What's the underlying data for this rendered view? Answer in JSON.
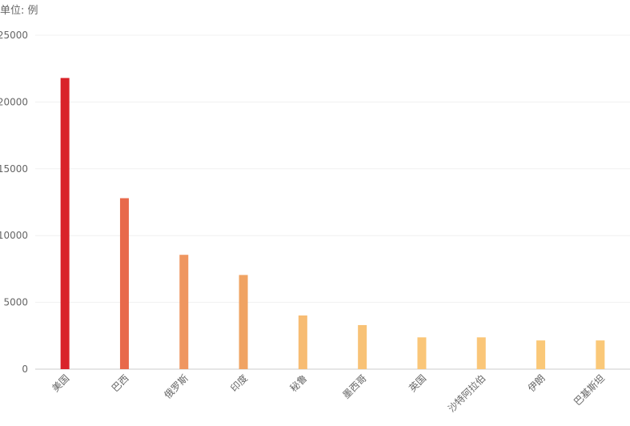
{
  "chart_data": {
    "type": "bar",
    "title": "",
    "unit_label": "单位: 例",
    "xlabel": "",
    "ylabel": "",
    "categories": [
      "美国",
      "巴西",
      "俄罗斯",
      "印度",
      "秘鲁",
      "墨西哥",
      "英国",
      "沙特阿拉伯",
      "伊朗",
      "巴基斯坦"
    ],
    "values": [
      21800,
      12800,
      8560,
      7050,
      4020,
      3300,
      2380,
      2380,
      2150,
      2150
    ],
    "ylim": [
      0,
      25000
    ],
    "yticks": [
      0,
      5000,
      10000,
      15000,
      20000,
      25000
    ],
    "grid": true,
    "legend": "none",
    "bar_colors": [
      "#d9232a",
      "#e8694b",
      "#ef9660",
      "#f0a363",
      "#f7bc73",
      "#f8c276",
      "#fac678",
      "#fac678",
      "#fac878",
      "#fac878"
    ]
  }
}
